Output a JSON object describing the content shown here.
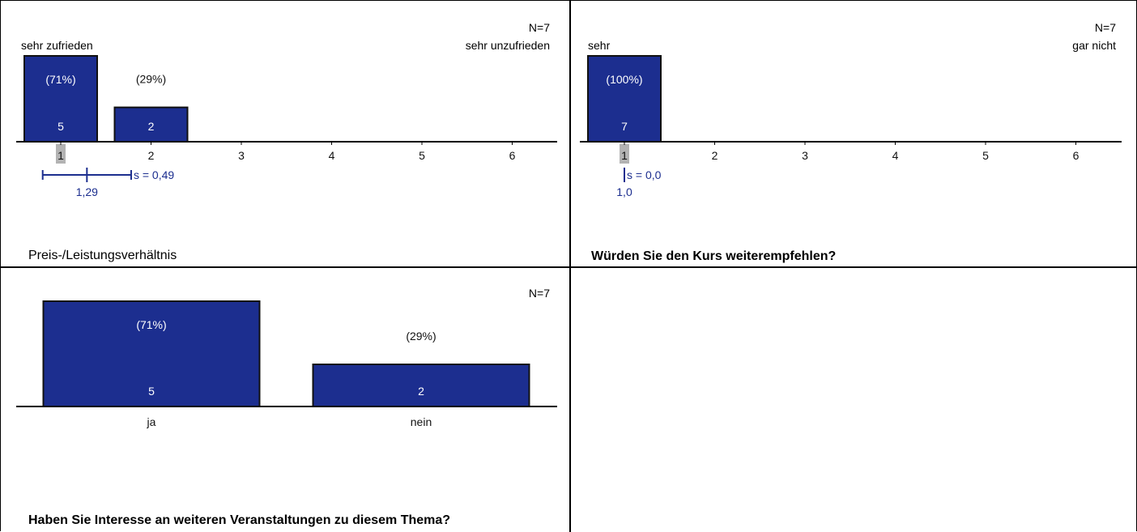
{
  "colors": {
    "bar_fill": "#1c2e8f",
    "bar_stroke": "#111111",
    "mean_color": "#1c2e8f",
    "median_marker": "#b3b3b3",
    "grid_line": "#000000"
  },
  "chart_data": [
    {
      "type": "bar",
      "title": "Preis-/Leistungsverhältnis",
      "n_label": "N=7",
      "left_anchor": "sehr zufrieden",
      "right_anchor": "sehr unzufrieden",
      "categories": [
        "1",
        "2",
        "3",
        "4",
        "5",
        "6"
      ],
      "values": [
        5,
        2,
        0,
        0,
        0,
        0
      ],
      "percent_labels": [
        "(71%)",
        "(29%)",
        "",
        "",
        "",
        ""
      ],
      "value_labels": [
        "5",
        "2",
        "",
        "",
        "",
        ""
      ],
      "median_category": "1",
      "mean": 1.29,
      "sd": 0.49,
      "mean_label": "1,29",
      "sd_label": "s = 0,49",
      "ylim": [
        0,
        5
      ]
    },
    {
      "type": "bar",
      "title": "Würden Sie den Kurs weiterempfehlen?",
      "n_label": "N=7",
      "left_anchor": "sehr",
      "right_anchor": "gar nicht",
      "categories": [
        "1",
        "2",
        "3",
        "4",
        "5",
        "6"
      ],
      "values": [
        7,
        0,
        0,
        0,
        0,
        0
      ],
      "percent_labels": [
        "(100%)",
        "",
        "",
        "",
        "",
        ""
      ],
      "value_labels": [
        "7",
        "",
        "",
        "",
        "",
        ""
      ],
      "median_category": "1",
      "mean": 1.0,
      "sd": 0.0,
      "mean_label": "1,0",
      "sd_label": "s = 0,0",
      "ylim": [
        0,
        7
      ]
    },
    {
      "type": "bar",
      "title": "Haben Sie Interesse an weiteren Veranstaltungen zu diesem Thema?",
      "n_label": "N=7",
      "categories": [
        "ja",
        "nein"
      ],
      "values": [
        5,
        2
      ],
      "percent_labels": [
        "(71%)",
        "(29%)"
      ],
      "value_labels": [
        "5",
        "2"
      ],
      "ylim": [
        0,
        5
      ]
    }
  ]
}
